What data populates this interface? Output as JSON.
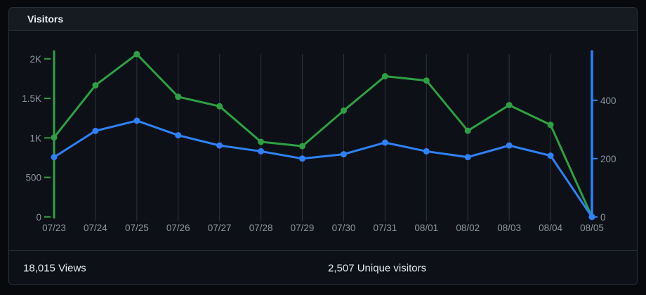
{
  "card": {
    "title": "Visitors"
  },
  "footer": {
    "views_value": "18,015",
    "views_label": "Views",
    "unique_value": "2,507",
    "unique_label": "Unique visitors"
  },
  "chart_data": {
    "type": "line",
    "title": "Visitors",
    "x": [
      "07/23",
      "07/24",
      "07/25",
      "07/26",
      "07/27",
      "07/28",
      "07/29",
      "07/30",
      "07/31",
      "08/01",
      "08/02",
      "08/03",
      "08/04",
      "08/05"
    ],
    "grid": "vertical-only",
    "legend": "none",
    "series": [
      {
        "id": "views",
        "name": "Views",
        "axis": "left",
        "color": "#2ea043",
        "values": [
          1005,
          1665,
          2060,
          1520,
          1400,
          950,
          895,
          1345,
          1780,
          1725,
          1090,
          1415,
          1165,
          0
        ]
      },
      {
        "id": "unique-visitors",
        "name": "Unique visitors",
        "axis": "right",
        "color": "#2f81f7",
        "values": [
          205,
          295,
          330,
          280,
          245,
          225,
          200,
          215,
          255,
          225,
          205,
          245,
          210,
          0
        ]
      }
    ],
    "axes": {
      "left": {
        "color": "#2ea043",
        "tick_values": [
          0,
          500,
          1000,
          1500,
          2000
        ],
        "tick_labels": [
          "0",
          "500",
          "1K",
          "1.5K",
          "2K"
        ],
        "range": [
          0,
          2090
        ]
      },
      "right": {
        "color": "#2f81f7",
        "tick_values": [
          0,
          200,
          400
        ],
        "tick_labels": [
          "0",
          "200",
          "400"
        ],
        "range": [
          0,
          565
        ]
      }
    },
    "label_color": "#8b949e",
    "gridline_color": "#2d333b",
    "totals": {
      "views": 18015,
      "unique_visitors": 2507
    }
  }
}
